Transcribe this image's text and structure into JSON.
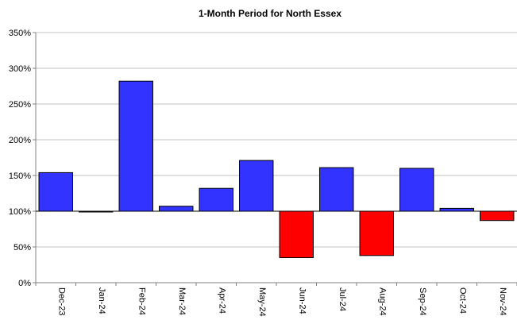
{
  "chart_data": {
    "type": "bar",
    "title": "1-Month Period for North Essex",
    "xlabel": "",
    "ylabel": "",
    "baseline": 100,
    "ylim": [
      0,
      350
    ],
    "yticks": [
      0,
      50,
      100,
      150,
      200,
      250,
      300,
      350
    ],
    "ytick_labels": [
      "0%",
      "50%",
      "100%",
      "150%",
      "200%",
      "250%",
      "300%",
      "350%"
    ],
    "categories": [
      "Dec-23",
      "Jan-24",
      "Feb-24",
      "Mar-24",
      "Apr-24",
      "May-24",
      "Jun-24",
      "Jul-24",
      "Aug-24",
      "Sep-24",
      "Oct-24",
      "Nov-24"
    ],
    "values": [
      154,
      99,
      282,
      107,
      132,
      171,
      35,
      161,
      38,
      160,
      104,
      87
    ],
    "colors": {
      "above_baseline": "#3333ff",
      "below_baseline": "#ff0000",
      "grid": "#c0c0c0",
      "axis": "#808080"
    },
    "grid": true,
    "legend": "none"
  }
}
